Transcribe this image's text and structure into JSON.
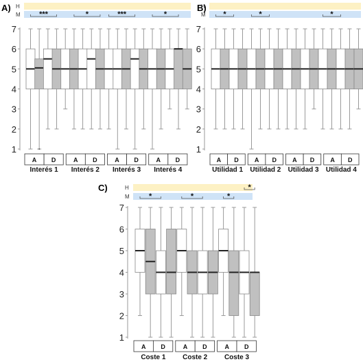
{
  "colors": {
    "h_band": "#fdf1c4",
    "m_band": "#cfe3f7",
    "white_box": "#ffffff",
    "grey_box": "#c0c0c0",
    "whisker": "#9a9a9a",
    "median": "#222222"
  },
  "band_labels": {
    "h": "H",
    "m": "M"
  },
  "chart_data": [
    {
      "panel_label": "A)",
      "type": "boxplot",
      "ylim": [
        1,
        7
      ],
      "yticks": [
        1,
        2,
        3,
        4,
        5,
        6,
        7
      ],
      "group_labels": [
        "Interés 1",
        "Interés 2",
        "Interés 3",
        "Interés 4"
      ],
      "pair_labels": [
        "A",
        "D"
      ],
      "boxes": [
        {
          "min": 1,
          "q1": 4,
          "median": 5,
          "q3": 6,
          "max": 7,
          "fill": "white"
        },
        {
          "min": 1,
          "q1": 4,
          "median": 5.05,
          "q3": 5.5,
          "max": 7,
          "fill": "grey"
        },
        {
          "min": 2,
          "q1": 4,
          "median": 5.5,
          "q3": 6,
          "max": 7,
          "fill": "white"
        },
        {
          "min": 2,
          "q1": 4,
          "median": 5,
          "q3": 6,
          "max": 7,
          "fill": "grey"
        },
        {
          "min": 3,
          "q1": 4,
          "median": 5,
          "q3": 6,
          "max": 7,
          "fill": "white"
        },
        {
          "min": 2,
          "q1": 4,
          "median": 5,
          "q3": 6,
          "max": 7,
          "fill": "grey"
        },
        {
          "min": 2,
          "q1": 4,
          "median": 5,
          "q3": 6,
          "max": 7,
          "fill": "white"
        },
        {
          "min": 2,
          "q1": 4,
          "median": 5.5,
          "q3": 6,
          "max": 7,
          "fill": "white"
        },
        {
          "min": 2,
          "q1": 4,
          "median": 5,
          "q3": 6,
          "max": 7,
          "fill": "grey"
        },
        {
          "min": 2,
          "q1": 4,
          "median": 5,
          "q3": 6,
          "max": 7,
          "fill": "white"
        },
        {
          "min": 1,
          "q1": 4,
          "median": 5,
          "q3": 6,
          "max": 7,
          "fill": "white"
        },
        {
          "min": 2,
          "q1": 4,
          "median": 5,
          "q3": 6,
          "max": 7,
          "fill": "grey"
        },
        {
          "min": 1,
          "q1": 4,
          "median": 5.5,
          "q3": 6,
          "max": 7,
          "fill": "white"
        },
        {
          "min": 2,
          "q1": 4,
          "median": 5,
          "q3": 6,
          "max": 7,
          "fill": "grey"
        },
        {
          "min": 1,
          "q1": 4,
          "median": 5,
          "q3": 6,
          "max": 7,
          "fill": "white"
        },
        {
          "min": 2,
          "q1": 4,
          "median": 5,
          "q3": 6,
          "max": 7,
          "fill": "grey"
        },
        {
          "min": 3,
          "q1": 4,
          "median": 5,
          "q3": 6,
          "max": 7,
          "fill": "white"
        },
        {
          "min": 2,
          "q1": 4,
          "median": 6,
          "q3": 6,
          "max": 7,
          "fill": "grey"
        },
        {
          "min": 3,
          "q1": 4,
          "median": 5,
          "q3": 6,
          "max": 7,
          "fill": "grey"
        }
      ],
      "outliers": [
        {
          "box": 1,
          "y": 1
        }
      ],
      "annotations": [
        {
          "row": "M",
          "from_box": 0,
          "to_box": 3,
          "text": "***"
        },
        {
          "row": "M",
          "from_box": 5,
          "to_box": 8,
          "text": "*"
        },
        {
          "row": "M",
          "from_box": 9,
          "to_box": 12,
          "text": "***"
        },
        {
          "row": "M",
          "from_box": 14,
          "to_box": 17,
          "text": "*"
        }
      ]
    },
    {
      "panel_label": "B)",
      "type": "boxplot",
      "ylim": [
        1,
        7
      ],
      "yticks": [
        1,
        2,
        3,
        4,
        5,
        6,
        7
      ],
      "group_labels": [
        "Utilidad 1",
        "Utilidad 2",
        "Utilidad 3",
        "Utilidad 4"
      ],
      "pair_labels": [
        "A",
        "D"
      ],
      "boxes": [
        {
          "min": 2,
          "q1": 4,
          "median": 5,
          "q3": 6,
          "max": 7,
          "fill": "white"
        },
        {
          "min": 2,
          "q1": 4,
          "median": 5,
          "q3": 6,
          "max": 7,
          "fill": "grey"
        },
        {
          "min": 2,
          "q1": 4,
          "median": 5,
          "q3": 6,
          "max": 7,
          "fill": "white"
        },
        {
          "min": 2,
          "q1": 4,
          "median": 5,
          "q3": 6,
          "max": 7,
          "fill": "grey"
        },
        {
          "min": 1,
          "q1": 4,
          "median": 5,
          "q3": 6,
          "max": 7,
          "fill": "white"
        },
        {
          "min": 2,
          "q1": 4,
          "median": 5,
          "q3": 6,
          "max": 7,
          "fill": "grey"
        },
        {
          "min": 2,
          "q1": 4,
          "median": 5,
          "q3": 6,
          "max": 7,
          "fill": "white"
        },
        {
          "min": 2,
          "q1": 4,
          "median": 5,
          "q3": 6,
          "max": 7,
          "fill": "grey"
        },
        {
          "min": 2,
          "q1": 4,
          "median": 5,
          "q3": 6,
          "max": 7,
          "fill": "white"
        },
        {
          "min": 2,
          "q1": 4,
          "median": 5,
          "q3": 6,
          "max": 7,
          "fill": "grey"
        },
        {
          "min": 2,
          "q1": 4,
          "median": 5,
          "q3": 6,
          "max": 7,
          "fill": "white"
        },
        {
          "min": 3,
          "q1": 4,
          "median": 5,
          "q3": 6,
          "max": 7,
          "fill": "grey"
        },
        {
          "min": 2,
          "q1": 4,
          "median": 5,
          "q3": 6,
          "max": 7,
          "fill": "white"
        },
        {
          "min": 2,
          "q1": 4,
          "median": 5,
          "q3": 6,
          "max": 7,
          "fill": "grey"
        },
        {
          "min": 2,
          "q1": 4,
          "median": 5,
          "q3": 6,
          "max": 7,
          "fill": "white"
        },
        {
          "min": 2,
          "q1": 4,
          "median": 5,
          "q3": 6,
          "max": 7,
          "fill": "grey"
        },
        {
          "min": 3,
          "q1": 4,
          "median": 5,
          "q3": 6,
          "max": 7,
          "fill": "grey"
        }
      ],
      "outliers": [],
      "annotations": [
        {
          "row": "M",
          "from_box": 0,
          "to_box": 2,
          "text": "*"
        },
        {
          "row": "M",
          "from_box": 4,
          "to_box": 6,
          "text": "*"
        },
        {
          "row": "M",
          "from_box": 12,
          "to_box": 14,
          "text": "*"
        }
      ]
    },
    {
      "panel_label": "C)",
      "type": "boxplot",
      "ylim": [
        1,
        7
      ],
      "yticks": [
        1,
        2,
        3,
        4,
        5,
        6,
        7
      ],
      "group_labels": [
        "Coste 1",
        "Coste 2",
        "Coste 3"
      ],
      "pair_labels": [
        "A",
        "D"
      ],
      "boxes": [
        {
          "min": 2,
          "q1": 4,
          "median": 5,
          "q3": 6,
          "max": 7,
          "fill": "white"
        },
        {
          "min": 1,
          "q1": 3,
          "median": 4.5,
          "q3": 6,
          "max": 7,
          "fill": "grey"
        },
        {
          "min": 1,
          "q1": 3,
          "median": 4,
          "q3": 5,
          "max": 7,
          "fill": "white"
        },
        {
          "min": 1,
          "q1": 3,
          "median": 4,
          "q3": 6,
          "max": 7,
          "fill": "grey"
        },
        {
          "min": 2,
          "q1": 4,
          "median": 5,
          "q3": 6,
          "max": 7,
          "fill": "white"
        },
        {
          "min": 1,
          "q1": 3,
          "median": 4,
          "q3": 5,
          "max": 7,
          "fill": "grey"
        },
        {
          "min": 1,
          "q1": 3,
          "median": 4,
          "q3": 5,
          "max": 7,
          "fill": "white"
        },
        {
          "min": 1,
          "q1": 3,
          "median": 4,
          "q3": 5,
          "max": 7,
          "fill": "grey"
        },
        {
          "min": 2,
          "q1": 4,
          "median": 5,
          "q3": 6,
          "max": 7,
          "fill": "white"
        },
        {
          "min": 1,
          "q1": 2,
          "median": 4,
          "q3": 5,
          "max": 7,
          "fill": "grey"
        },
        {
          "min": 1,
          "q1": 3,
          "median": 4,
          "q3": 5,
          "max": 7,
          "fill": "white"
        },
        {
          "min": 1,
          "q1": 2,
          "median": 4,
          "q3": 4,
          "max": 7,
          "fill": "grey"
        }
      ],
      "outliers": [],
      "annotations": [
        {
          "row": "M",
          "from_box": 0,
          "to_box": 2,
          "text": "*"
        },
        {
          "row": "M",
          "from_box": 4,
          "to_box": 6,
          "text": "*"
        },
        {
          "row": "M",
          "from_box": 8,
          "to_box": 9,
          "text": "*"
        },
        {
          "row": "H",
          "from_box": 10,
          "to_box": 11,
          "text": "*"
        }
      ]
    }
  ]
}
